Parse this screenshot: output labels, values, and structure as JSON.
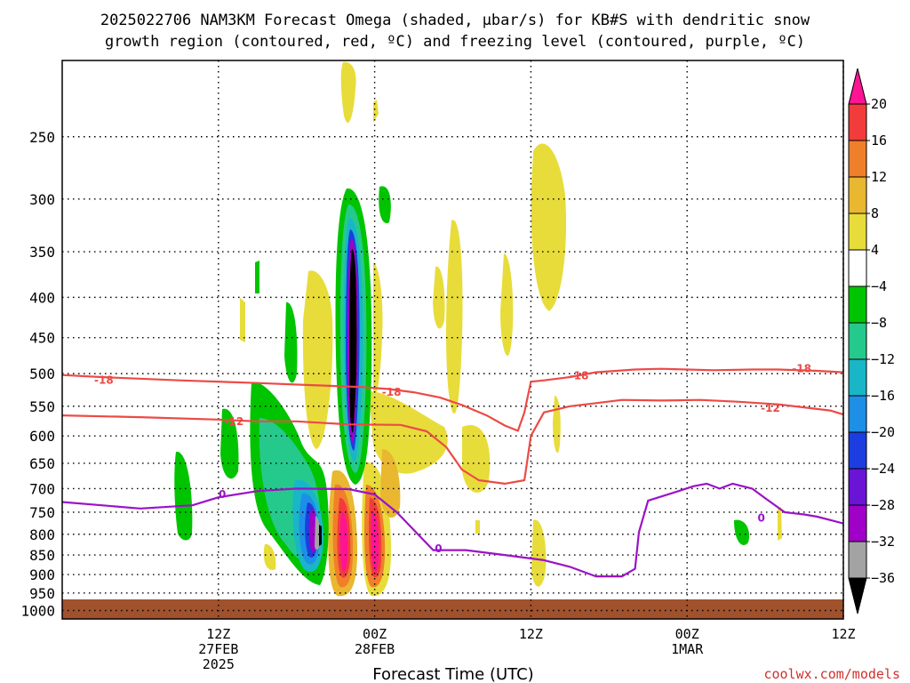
{
  "chart_data": {
    "type": "heatmap",
    "title_line1": "2025022706 NAM3KM Forecast Omega (shaded, μbar/s) for KB#S with dendritic snow",
    "title_line2": "growth region (contoured, red, ºC) and freezing level (contoured, purple, ºC)",
    "xlabel": "Forecast Time (UTC)",
    "credit": "coolwx.com/models",
    "y_axis": {
      "scale": "pressure (hPa), reversed, log",
      "ylim": [
        1025,
        200
      ],
      "ticks": [
        250,
        300,
        350,
        400,
        450,
        500,
        550,
        600,
        650,
        700,
        750,
        800,
        850,
        900,
        950,
        1000
      ]
    },
    "x_axis": {
      "unit": "forecast hour",
      "xlim": [
        -6,
        54
      ],
      "ticks": [
        {
          "x": 6,
          "lines": [
            "12Z",
            "27FEB",
            "2025"
          ]
        },
        {
          "x": 18,
          "lines": [
            "00Z",
            "28FEB"
          ]
        },
        {
          "x": 30,
          "lines": [
            "12Z"
          ]
        },
        {
          "x": 42,
          "lines": [
            "00Z",
            "1MAR"
          ]
        },
        {
          "x": 54,
          "lines": [
            "12Z"
          ]
        }
      ],
      "gridlines": [
        6,
        18,
        30,
        42,
        54
      ]
    },
    "colorbar": {
      "labels": [
        "20",
        "16",
        "12",
        "8",
        "4",
        "−4",
        "−8",
        "−12",
        "−16",
        "−20",
        "−24",
        "−28",
        "−32",
        "−36"
      ],
      "colors": [
        "#ff1493",
        "#f23c3c",
        "#f07f2a",
        "#e9b730",
        "#e8dc3a",
        "#ffffff",
        "#00c400",
        "#26c98c",
        "#19b6c7",
        "#1e8fe6",
        "#1c3ee0",
        "#6a14d6",
        "#a000c8",
        "#a3a3a3",
        "#000000"
      ]
    },
    "contours": [
      {
        "color": "#ec4a46",
        "label": "-18",
        "points": [
          [
            -6,
            502
          ],
          [
            -3,
            505
          ],
          [
            3,
            510
          ],
          [
            9,
            514
          ],
          [
            13,
            517
          ],
          [
            17,
            520
          ],
          [
            19,
            523
          ],
          [
            21,
            528
          ],
          [
            23,
            536
          ],
          [
            24.7,
            548
          ],
          [
            26.6,
            565
          ],
          [
            28,
            582
          ],
          [
            29,
            591
          ],
          [
            29.5,
            560
          ],
          [
            30,
            512
          ],
          [
            31,
            510
          ],
          [
            33,
            505
          ],
          [
            35,
            498
          ],
          [
            38,
            494
          ],
          [
            40,
            493
          ],
          [
            42,
            494
          ],
          [
            44,
            495
          ],
          [
            47,
            494
          ],
          [
            49,
            494
          ],
          [
            52,
            496
          ],
          [
            54,
            498
          ],
          [
            55,
            500
          ],
          [
            57,
            510
          ]
        ],
        "labels": [
          {
            "x": -2.8,
            "p": 510
          },
          {
            "x": 19.3,
            "p": 528
          },
          {
            "x": 33.7,
            "p": 503
          },
          {
            "x": 50.8,
            "p": 493
          }
        ]
      },
      {
        "color": "#ec4a46",
        "label": "-12",
        "points": [
          [
            -6,
            565
          ],
          [
            0,
            568
          ],
          [
            6,
            572
          ],
          [
            9,
            575
          ],
          [
            12,
            575
          ],
          [
            16,
            580
          ],
          [
            20,
            581
          ],
          [
            22,
            592
          ],
          [
            23.5,
            620
          ],
          [
            24.7,
            662
          ],
          [
            26,
            683
          ],
          [
            28,
            690
          ],
          [
            29.5,
            683
          ],
          [
            30,
            600
          ],
          [
            31,
            560
          ],
          [
            33,
            550
          ],
          [
            35,
            545
          ],
          [
            37,
            540
          ],
          [
            40,
            541
          ],
          [
            43,
            540
          ],
          [
            46,
            543
          ],
          [
            49,
            547
          ],
          [
            53,
            557
          ],
          [
            55,
            570
          ],
          [
            57,
            572
          ]
        ],
        "labels": [
          {
            "x": 7.2,
            "p": 575
          },
          {
            "x": 48.4,
            "p": 553
          }
        ]
      },
      {
        "color": "#9b12c8",
        "label": "0",
        "points": [
          [
            -6,
            728
          ],
          [
            0,
            742
          ],
          [
            4,
            735
          ],
          [
            6,
            718
          ],
          [
            9,
            705
          ],
          [
            12,
            700
          ],
          [
            16,
            701
          ],
          [
            18,
            712
          ],
          [
            19.7,
            750
          ],
          [
            21,
            790
          ],
          [
            22.5,
            838
          ],
          [
            25,
            838
          ],
          [
            28,
            850
          ],
          [
            31,
            863
          ],
          [
            33,
            880
          ],
          [
            35,
            905
          ],
          [
            37,
            905
          ],
          [
            38,
            885
          ],
          [
            38.3,
            795
          ],
          [
            39,
            725
          ],
          [
            41,
            708
          ],
          [
            42.5,
            695
          ],
          [
            43.5,
            690
          ],
          [
            44.5,
            700
          ],
          [
            45.5,
            690
          ],
          [
            47,
            700
          ],
          [
            48,
            720
          ],
          [
            49.5,
            750
          ],
          [
            51,
            755
          ],
          [
            52,
            760
          ],
          [
            54,
            775
          ],
          [
            56,
            760
          ],
          [
            57,
            745
          ]
        ],
        "labels": [
          {
            "x": 6.3,
            "p": 712
          },
          {
            "x": 22.9,
            "p": 835
          },
          {
            "x": 47.7,
            "p": 763
          }
        ]
      }
    ]
  }
}
